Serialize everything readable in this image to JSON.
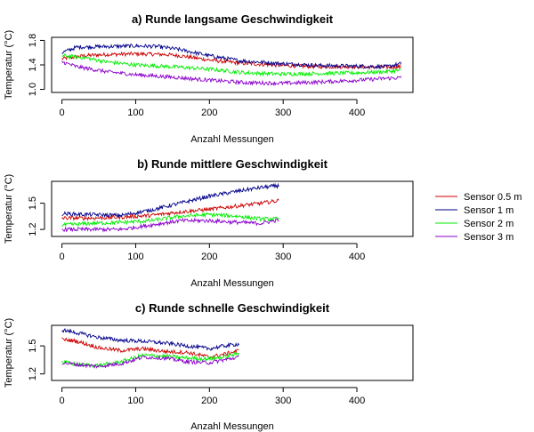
{
  "colors": {
    "s05": "#cc0000",
    "s1": "#00008b",
    "s2": "#00ee00",
    "s3": "#8b00cc"
  },
  "legend": {
    "placement": "right",
    "entries": [
      "Sensor 0.5 m",
      "Sensor 1 m",
      "Sensor 2 m",
      "Sensor 3 m"
    ]
  },
  "chart_data": [
    {
      "type": "line",
      "title": "a) Runde langsame Geschwindigkeit",
      "xlabel": "Anzahl Messungen",
      "ylabel": "Temperatur (°C)",
      "xlim": [
        -14,
        476
      ],
      "ylim": [
        0.95,
        1.85
      ],
      "xticks": [
        0,
        100,
        200,
        300,
        400
      ],
      "yticks": [
        1.0,
        1.4,
        1.8
      ],
      "ytick_labels": [
        "1.0",
        "1.4",
        "1.8"
      ],
      "n_points": 460,
      "series": [
        {
          "name": "Sensor 0.5 m",
          "color": "s05",
          "x": [
            0,
            30,
            60,
            100,
            140,
            160,
            200,
            240,
            300,
            350,
            400,
            440,
            460
          ],
          "y": [
            1.5,
            1.55,
            1.57,
            1.58,
            1.57,
            1.55,
            1.48,
            1.43,
            1.39,
            1.37,
            1.37,
            1.36,
            1.37
          ]
        },
        {
          "name": "Sensor 1 m",
          "color": "s1",
          "x": [
            0,
            20,
            60,
            100,
            130,
            160,
            200,
            240,
            300,
            350,
            400,
            440,
            460
          ],
          "y": [
            1.6,
            1.69,
            1.7,
            1.71,
            1.7,
            1.65,
            1.55,
            1.47,
            1.42,
            1.39,
            1.38,
            1.37,
            1.42
          ]
        },
        {
          "name": "Sensor 2 m",
          "color": "s2",
          "x": [
            0,
            30,
            60,
            100,
            150,
            200,
            250,
            300,
            350,
            400,
            440,
            460
          ],
          "y": [
            1.55,
            1.52,
            1.45,
            1.4,
            1.37,
            1.33,
            1.27,
            1.25,
            1.26,
            1.27,
            1.29,
            1.31
          ]
        },
        {
          "name": "Sensor 3 m",
          "color": "s3",
          "x": [
            0,
            20,
            60,
            100,
            150,
            200,
            250,
            300,
            350,
            400,
            440,
            460
          ],
          "y": [
            1.45,
            1.37,
            1.29,
            1.24,
            1.2,
            1.15,
            1.11,
            1.1,
            1.12,
            1.15,
            1.18,
            1.19
          ]
        }
      ]
    },
    {
      "type": "line",
      "title": "b) Runde mittlere Geschwindigkeit",
      "xlabel": "Anzahl Messungen",
      "ylabel": "Temperatur (°C)",
      "xlim": [
        -14,
        476
      ],
      "ylim": [
        1.12,
        1.75
      ],
      "xticks": [
        0,
        100,
        200,
        300,
        400
      ],
      "yticks": [
        1.2,
        1.5
      ],
      "ytick_labels": [
        "1.2",
        "1.5"
      ],
      "n_points": 294,
      "series": [
        {
          "name": "Sensor 0.5 m",
          "color": "s05",
          "x": [
            0,
            40,
            80,
            120,
            160,
            200,
            240,
            270,
            294
          ],
          "y": [
            1.33,
            1.33,
            1.34,
            1.36,
            1.4,
            1.43,
            1.47,
            1.5,
            1.53
          ]
        },
        {
          "name": "Sensor 1 m",
          "color": "s1",
          "x": [
            0,
            40,
            80,
            120,
            160,
            200,
            240,
            270,
            294
          ],
          "y": [
            1.38,
            1.37,
            1.36,
            1.42,
            1.5,
            1.58,
            1.64,
            1.68,
            1.7
          ]
        },
        {
          "name": "Sensor 2 m",
          "color": "s2",
          "x": [
            0,
            40,
            80,
            120,
            160,
            200,
            240,
            270,
            294
          ],
          "y": [
            1.25,
            1.27,
            1.28,
            1.3,
            1.35,
            1.37,
            1.35,
            1.32,
            1.32
          ]
        },
        {
          "name": "Sensor 3 m",
          "color": "s3",
          "x": [
            0,
            40,
            80,
            120,
            160,
            200,
            240,
            270,
            294
          ],
          "y": [
            1.2,
            1.2,
            1.2,
            1.25,
            1.3,
            1.3,
            1.28,
            1.27,
            1.31
          ]
        }
      ]
    },
    {
      "type": "line",
      "title": "c) Runde schnelle Geschwindigkeit",
      "xlabel": "Anzahl Messungen",
      "ylabel": "Temperatur (°C)",
      "xlim": [
        -14,
        476
      ],
      "ylim": [
        1.13,
        1.72
      ],
      "xticks": [
        0,
        100,
        200,
        300,
        400
      ],
      "yticks": [
        1.2,
        1.5
      ],
      "ytick_labels": [
        "1.2",
        "1.5"
      ],
      "n_points": 240,
      "series": [
        {
          "name": "Sensor 0.5 m",
          "color": "s05",
          "x": [
            0,
            20,
            50,
            80,
            110,
            140,
            170,
            200,
            220,
            240
          ],
          "y": [
            1.57,
            1.55,
            1.48,
            1.45,
            1.47,
            1.44,
            1.43,
            1.38,
            1.41,
            1.45
          ]
        },
        {
          "name": "Sensor 1 m",
          "color": "s1",
          "x": [
            0,
            20,
            50,
            80,
            110,
            140,
            170,
            200,
            220,
            240
          ],
          "y": [
            1.67,
            1.64,
            1.59,
            1.56,
            1.55,
            1.53,
            1.5,
            1.47,
            1.5,
            1.52
          ]
        },
        {
          "name": "Sensor 2 m",
          "color": "s2",
          "x": [
            0,
            20,
            50,
            80,
            110,
            140,
            170,
            200,
            220,
            240
          ],
          "y": [
            1.33,
            1.3,
            1.29,
            1.33,
            1.4,
            1.39,
            1.37,
            1.36,
            1.38,
            1.42
          ]
        },
        {
          "name": "Sensor 3 m",
          "color": "s3",
          "x": [
            0,
            20,
            50,
            80,
            110,
            140,
            170,
            200,
            220,
            240
          ],
          "y": [
            1.32,
            1.3,
            1.28,
            1.31,
            1.38,
            1.37,
            1.33,
            1.32,
            1.35,
            1.38
          ]
        }
      ]
    }
  ]
}
